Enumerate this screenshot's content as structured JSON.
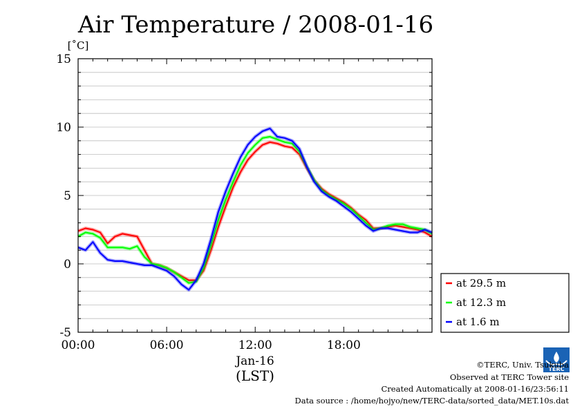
{
  "chart_data": {
    "type": "line",
    "title": "Air Temperature / 2008-01-16",
    "ylabel": "[˚C]",
    "xlabel": "(LST)",
    "x_date_label": "Jan-16",
    "x_unit": "hours",
    "xlim": [
      0,
      23.98
    ],
    "ylim": [
      -5,
      15
    ],
    "yticks": [
      -5,
      0,
      5,
      10,
      15
    ],
    "yticks_minor_step": 1,
    "xticks": [
      0,
      6,
      12,
      18
    ],
    "xtick_labels": [
      "00:00",
      "06:00",
      "12:00",
      "18:00"
    ],
    "grid": true,
    "legend_position": "right-bottom",
    "x": [
      0,
      0.5,
      1,
      1.5,
      2,
      2.5,
      3,
      3.5,
      4,
      4.5,
      5,
      5.5,
      6,
      6.5,
      7,
      7.5,
      8,
      8.5,
      9,
      9.5,
      10,
      10.5,
      11,
      11.5,
      12,
      12.5,
      13,
      13.5,
      14,
      14.5,
      15,
      15.5,
      16,
      16.5,
      17,
      17.5,
      18,
      18.5,
      19,
      19.5,
      20,
      20.5,
      21,
      21.5,
      22,
      22.5,
      23,
      23.5,
      23.98
    ],
    "series": [
      {
        "name": "at 29.5 m",
        "color": "#ff0000",
        "values": [
          2.4,
          2.6,
          2.5,
          2.3,
          1.5,
          2.0,
          2.2,
          2.1,
          2.0,
          1.0,
          0.0,
          -0.1,
          -0.3,
          -0.6,
          -0.9,
          -1.2,
          -1.2,
          -0.5,
          1.0,
          2.7,
          4.2,
          5.6,
          6.7,
          7.6,
          8.2,
          8.7,
          8.9,
          8.8,
          8.6,
          8.5,
          8.0,
          7.0,
          6.1,
          5.5,
          5.1,
          4.8,
          4.5,
          4.1,
          3.6,
          3.2,
          2.6,
          2.6,
          2.7,
          2.8,
          2.7,
          2.6,
          2.5,
          2.3,
          2.0
        ]
      },
      {
        "name": "at 12.3 m",
        "color": "#00ff00",
        "values": [
          2.0,
          2.3,
          2.2,
          1.9,
          1.2,
          1.2,
          1.2,
          1.1,
          1.3,
          0.5,
          0.0,
          -0.1,
          -0.3,
          -0.6,
          -1.0,
          -1.4,
          -1.3,
          -0.3,
          1.4,
          3.2,
          4.7,
          6.0,
          7.2,
          8.1,
          8.7,
          9.2,
          9.3,
          9.1,
          8.9,
          8.8,
          8.2,
          7.1,
          6.1,
          5.4,
          5.0,
          4.7,
          4.4,
          4.0,
          3.5,
          3.0,
          2.5,
          2.6,
          2.8,
          2.9,
          2.9,
          2.7,
          2.6,
          2.5,
          2.2
        ]
      },
      {
        "name": "at 1.6 m",
        "color": "#0000ff",
        "values": [
          1.2,
          1.0,
          1.6,
          0.8,
          0.3,
          0.2,
          0.2,
          0.1,
          0.0,
          -0.1,
          -0.1,
          -0.3,
          -0.5,
          -0.9,
          -1.5,
          -1.9,
          -1.2,
          0.0,
          1.8,
          3.8,
          5.3,
          6.6,
          7.8,
          8.7,
          9.3,
          9.7,
          9.9,
          9.3,
          9.2,
          9.0,
          8.4,
          7.1,
          6.0,
          5.3,
          4.9,
          4.6,
          4.2,
          3.8,
          3.3,
          2.8,
          2.4,
          2.6,
          2.6,
          2.5,
          2.4,
          2.3,
          2.3,
          2.5,
          2.3
        ]
      }
    ]
  },
  "footer": {
    "copyright": "©TERC, Univ. Tsukuba",
    "site": "Observed at TERC Tower site",
    "created": "Created Automatically at 2008-01-16/23:56:11",
    "source": "Data source : /home/hojyo/new/TERC-data/sorted_data/MET.10s.dat",
    "logo_text": "TERC"
  }
}
